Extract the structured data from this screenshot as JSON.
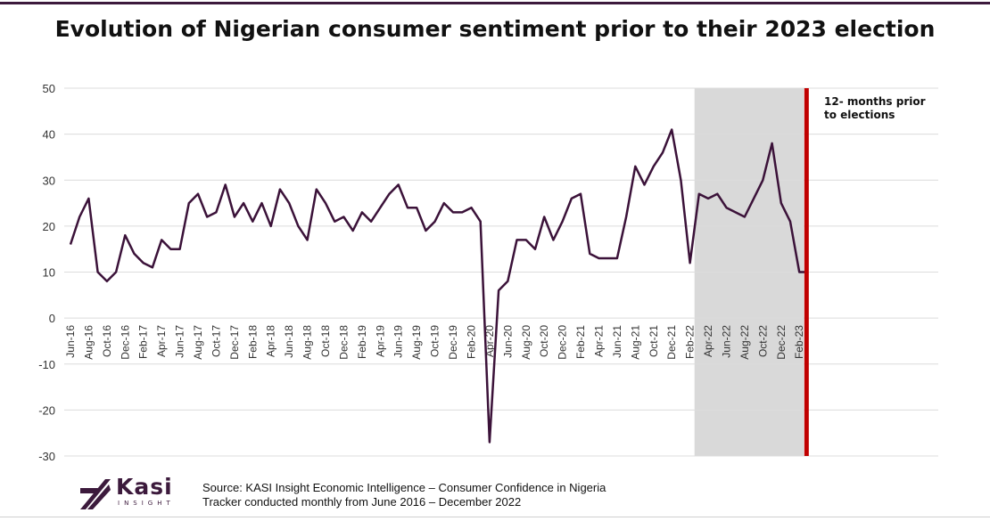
{
  "title": "Evolution of Nigerian consumer sentiment prior to their 2023 election",
  "source": {
    "line1": "Source: KASI Insight Economic Intelligence – Consumer Confidence in Nigeria",
    "line2": "Tracker conducted monthly from June 2016 – December 2022"
  },
  "logo": {
    "word": "Kasi",
    "sub": "INSIGHT"
  },
  "colors": {
    "line": "#3b1239",
    "shade": "#d9d9d9",
    "marker": "#c00000",
    "grid": "#dcdcdc"
  },
  "chart_data": {
    "type": "line",
    "title": "Evolution of Nigerian consumer sentiment prior to their 2023 election",
    "xlabel": "",
    "ylabel": "",
    "ylim": [
      -30,
      50
    ],
    "yticks": [
      50,
      40,
      30,
      20,
      10,
      0,
      -10,
      -20,
      -30
    ],
    "grid": true,
    "tick_labels": [
      "Jun-16",
      "Aug-16",
      "Oct-16",
      "Dec-16",
      "Feb-17",
      "Apr-17",
      "Jun-17",
      "Aug-17",
      "Oct-17",
      "Dec-17",
      "Feb-18",
      "Apr-18",
      "Jun-18",
      "Aug-18",
      "Oct-18",
      "Dec-18",
      "Feb-19",
      "Apr-19",
      "Jun-19",
      "Aug-19",
      "Oct-19",
      "Dec-19",
      "Feb-20",
      "Apr-20",
      "Jun-20",
      "Aug-20",
      "Oct-20",
      "Dec-20",
      "Feb-21",
      "Apr-21",
      "Jun-21",
      "Aug-21",
      "Oct-21",
      "Dec-21",
      "Feb-22",
      "Apr-22",
      "Jun-22",
      "Aug-22",
      "Oct-22",
      "Dec-22",
      "Feb-23"
    ],
    "series": [
      {
        "name": "Consumer sentiment",
        "start_month": "Jun-16",
        "values": [
          16,
          22,
          26,
          10,
          8,
          10,
          18,
          14,
          12,
          11,
          17,
          15,
          15,
          25,
          27,
          22,
          23,
          29,
          22,
          25,
          21,
          25,
          20,
          28,
          25,
          20,
          17,
          28,
          25,
          21,
          22,
          19,
          23,
          21,
          24,
          27,
          29,
          24,
          24,
          19,
          21,
          25,
          23,
          23,
          24,
          21,
          -27,
          6,
          8,
          17,
          17,
          15,
          22,
          17,
          21,
          26,
          27,
          14,
          13,
          13,
          13,
          22,
          33,
          29,
          33,
          36,
          41,
          30,
          12,
          27,
          26,
          27,
          24,
          23,
          22,
          26,
          30,
          38,
          25,
          21,
          10,
          10
        ]
      }
    ],
    "highlight": {
      "label_line1": "12- months prior",
      "label_line2": "to elections",
      "from_month": "Mar-22",
      "to_month": "Feb-23"
    },
    "election_marker": "Feb-23"
  }
}
